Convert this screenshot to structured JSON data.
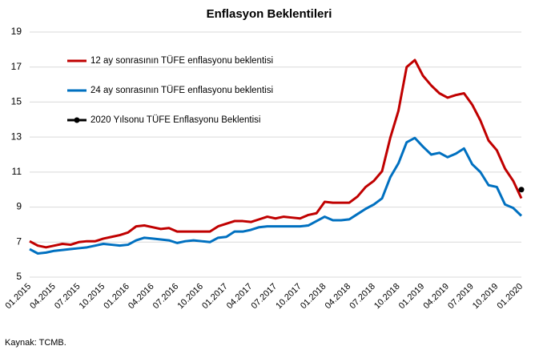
{
  "chart_data": {
    "type": "line",
    "title": "Enflasyon Beklentileri",
    "source": "Kaynak: TCMB.",
    "categories": [
      "01.2015",
      null,
      null,
      "04.2015",
      null,
      null,
      "07.2015",
      null,
      null,
      "10.2015",
      null,
      null,
      "01.2016",
      null,
      null,
      "04.2016",
      null,
      null,
      "07.2016",
      null,
      null,
      "10.2016",
      null,
      null,
      "01.2017",
      null,
      null,
      "04.2017",
      null,
      null,
      "07.2017",
      null,
      null,
      "10.2017",
      null,
      null,
      "01.2018",
      null,
      null,
      "04.2018",
      null,
      null,
      "07.2018",
      null,
      null,
      "10.2018",
      null,
      null,
      "01.2019",
      null,
      null,
      "04.2019",
      null,
      null,
      "07.2019",
      null,
      null,
      "10.2019",
      null,
      null,
      "01.2020"
    ],
    "series": [
      {
        "name": "12 ay sonrasının TÜFE enflasyonu beklentisi",
        "color": "#c00000",
        "marker": false,
        "values": [
          7.05,
          6.8,
          6.7,
          6.8,
          6.9,
          6.85,
          7.0,
          7.05,
          7.05,
          7.2,
          7.3,
          7.4,
          7.55,
          7.9,
          7.95,
          7.85,
          7.75,
          7.8,
          7.6,
          7.6,
          7.6,
          7.6,
          7.6,
          7.9,
          8.05,
          8.2,
          8.2,
          8.15,
          8.3,
          8.45,
          8.35,
          8.45,
          8.4,
          8.35,
          8.55,
          8.65,
          9.3,
          9.25,
          9.25,
          9.25,
          9.6,
          10.15,
          10.5,
          11.05,
          12.95,
          14.5,
          17.0,
          17.4,
          16.5,
          15.95,
          15.5,
          15.25,
          15.4,
          15.5,
          14.85,
          13.95,
          12.8,
          12.25,
          11.2,
          10.5,
          9.5
        ]
      },
      {
        "name": "24 ay sonrasının TÜFE enflasyonu beklentisi",
        "color": "#0070c0",
        "marker": false,
        "values": [
          6.6,
          6.35,
          6.4,
          6.5,
          6.55,
          6.6,
          6.65,
          6.7,
          6.8,
          6.9,
          6.85,
          6.8,
          6.85,
          7.1,
          7.25,
          7.2,
          7.15,
          7.1,
          6.95,
          7.05,
          7.1,
          7.05,
          7.0,
          7.25,
          7.3,
          7.6,
          7.6,
          7.7,
          7.85,
          7.9,
          7.9,
          7.9,
          7.9,
          7.9,
          7.95,
          8.2,
          8.45,
          8.25,
          8.25,
          8.3,
          8.6,
          8.9,
          9.15,
          9.5,
          10.7,
          11.5,
          12.7,
          12.95,
          12.45,
          12.0,
          12.1,
          11.85,
          12.05,
          12.35,
          11.45,
          11.0,
          10.25,
          10.15,
          9.15,
          8.95,
          8.5
        ]
      },
      {
        "name": "2020 Yılsonu TÜFE Enflasyonu Beklentisi",
        "color": "#000000",
        "marker": true,
        "values": [
          null,
          null,
          null,
          null,
          null,
          null,
          null,
          null,
          null,
          null,
          null,
          null,
          null,
          null,
          null,
          null,
          null,
          null,
          null,
          null,
          null,
          null,
          null,
          null,
          null,
          null,
          null,
          null,
          null,
          null,
          null,
          null,
          null,
          null,
          null,
          null,
          null,
          null,
          null,
          null,
          null,
          null,
          null,
          null,
          null,
          null,
          null,
          null,
          null,
          null,
          null,
          null,
          null,
          null,
          null,
          null,
          null,
          null,
          null,
          null,
          10.0
        ]
      }
    ],
    "ylim": [
      5,
      19
    ],
    "yticks": [
      5,
      7,
      9,
      11,
      13,
      15,
      17,
      19
    ],
    "grid": true,
    "legend": "top-left"
  }
}
